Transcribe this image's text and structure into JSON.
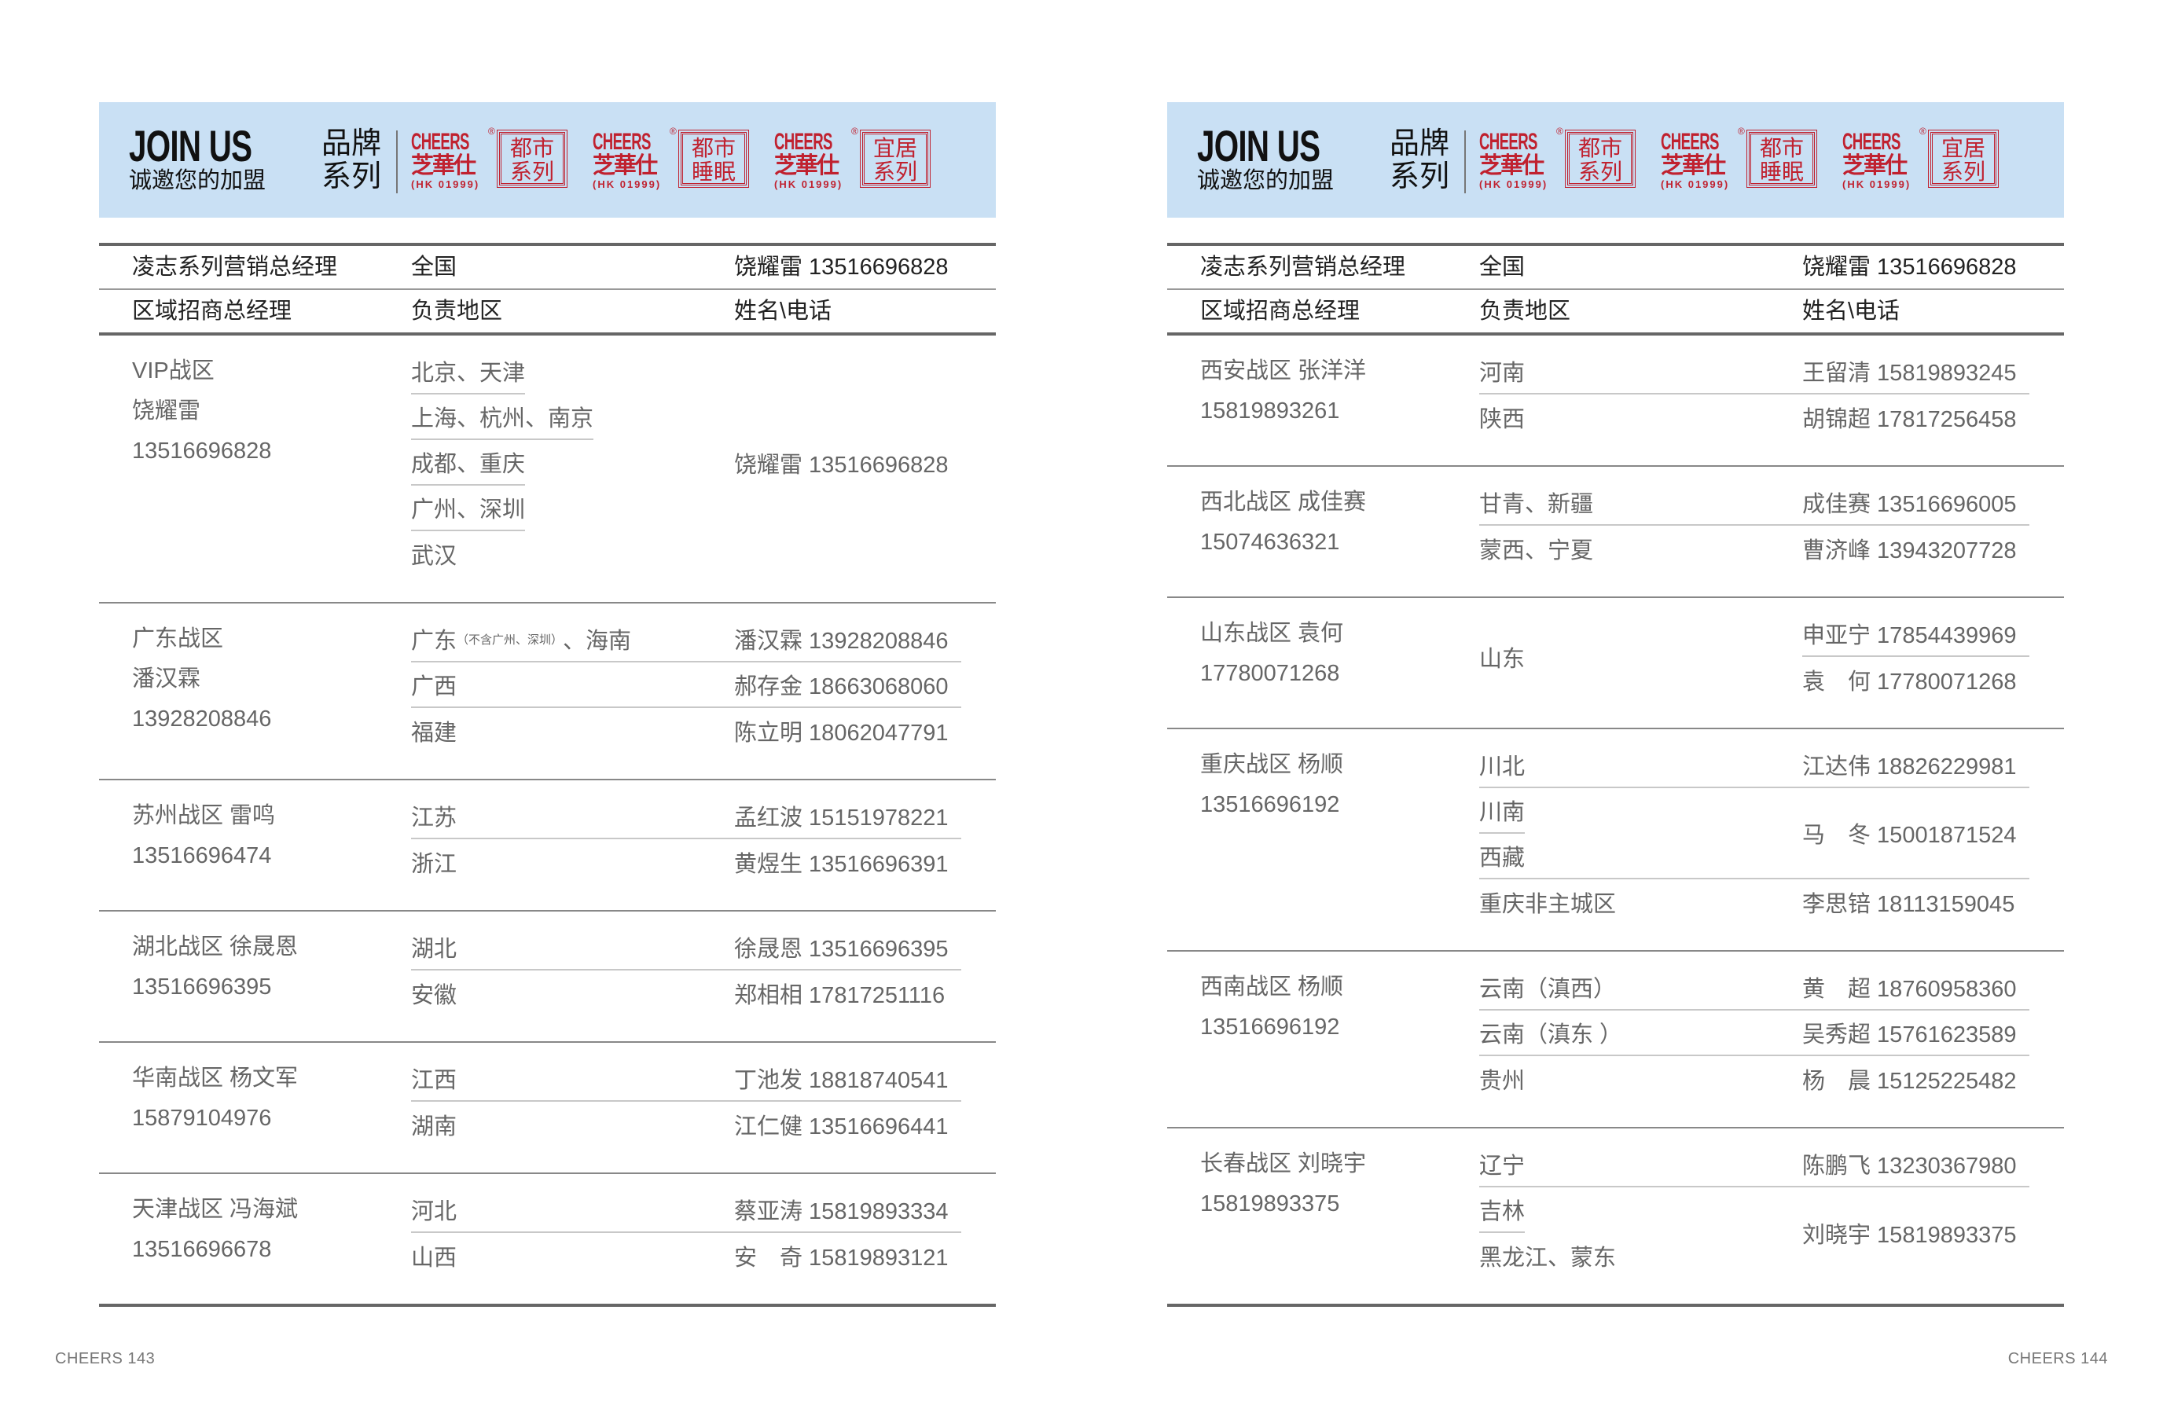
{
  "colors": {
    "band": "#c9e0f4",
    "brand_red": "#c0212f",
    "text": "#666666"
  },
  "header": {
    "join_title": "JOIN US",
    "join_subtitle": "诚邀您的加盟",
    "brand_label": "品牌系列",
    "logos": [
      {
        "en": "CHEERS",
        "reg": "®",
        "cn": "芝華仕",
        "code": "(HK 01999)",
        "series": [
          "都市",
          "系列"
        ]
      },
      {
        "en": "CHEERS",
        "reg": "®",
        "cn": "芝華仕",
        "code": "(HK 01999)",
        "series": [
          "都市",
          "睡眠"
        ]
      },
      {
        "en": "CHEERS",
        "reg": "®",
        "cn": "芝華仕",
        "code": "(HK 01999)",
        "series": [
          "宜居",
          "系列"
        ]
      }
    ]
  },
  "table_header": {
    "row1": [
      "凌志系列营销总经理",
      "全国",
      "饶耀雷 13516696828"
    ],
    "row2": [
      "区域招商总经理",
      "负责地区",
      "姓名\\电话"
    ]
  },
  "pages": [
    {
      "footer": "CHEERS  143",
      "sections": [
        {
          "manager": [
            "VIP战区",
            "饶耀雷",
            "13516696828"
          ],
          "regions": [
            {
              "text": "北京、天津"
            },
            {
              "text": "上海、杭州、南京"
            },
            {
              "text": "成都、重庆"
            },
            {
              "text": "广州、深圳"
            },
            {
              "text": "武汉"
            }
          ],
          "contacts": [
            {
              "text": "饶耀雷 13516696828",
              "span": 5
            }
          ]
        },
        {
          "manager": [
            "广东战区",
            "潘汉霖",
            "13928208846"
          ],
          "regions": [
            {
              "text": "广东",
              "note": "（不含广州、深圳）",
              "suffix": "、海南"
            },
            {
              "text": "广西"
            },
            {
              "text": "福建"
            }
          ],
          "contacts": [
            {
              "text": "潘汉霖 13928208846"
            },
            {
              "text": "郝存金 18663068060"
            },
            {
              "text": "陈立明 18062047791"
            }
          ]
        },
        {
          "manager": [
            "苏州战区 雷鸣",
            "13516696474"
          ],
          "regions": [
            {
              "text": "江苏"
            },
            {
              "text": "浙江"
            }
          ],
          "contacts": [
            {
              "text": "孟红波 15151978221"
            },
            {
              "text": "黄煜生 13516696391"
            }
          ]
        },
        {
          "manager": [
            "湖北战区 徐晟恩",
            "13516696395"
          ],
          "regions": [
            {
              "text": "湖北"
            },
            {
              "text": "安徽"
            }
          ],
          "contacts": [
            {
              "text": "徐晟恩 13516696395"
            },
            {
              "text": "郑相相 17817251116"
            }
          ]
        },
        {
          "manager": [
            "华南战区 杨文军",
            "15879104976"
          ],
          "regions": [
            {
              "text": "江西"
            },
            {
              "text": "湖南"
            }
          ],
          "contacts": [
            {
              "text": "丁池发 18818740541"
            },
            {
              "text": "江仁健 13516696441"
            }
          ]
        },
        {
          "manager": [
            "天津战区 冯海斌",
            "13516696678"
          ],
          "regions": [
            {
              "text": "河北"
            },
            {
              "text": "山西"
            }
          ],
          "contacts": [
            {
              "text": "蔡亚涛 15819893334"
            },
            {
              "text": "安　奇 15819893121"
            }
          ]
        }
      ]
    },
    {
      "footer": "CHEERS  144",
      "sections": [
        {
          "manager": [
            "西安战区 张洋洋",
            "15819893261"
          ],
          "regions": [
            {
              "text": "河南"
            },
            {
              "text": "陕西"
            }
          ],
          "contacts": [
            {
              "text": "王留清 15819893245"
            },
            {
              "text": "胡锦超 17817256458"
            }
          ]
        },
        {
          "manager": [
            "西北战区 成佳赛",
            "15074636321"
          ],
          "regions": [
            {
              "text": "甘青、新疆"
            },
            {
              "text": "蒙西、宁夏"
            }
          ],
          "contacts": [
            {
              "text": "成佳赛 13516696005"
            },
            {
              "text": "曹济峰 13943207728"
            }
          ]
        },
        {
          "manager": [
            "山东战区 袁何",
            "17780071268"
          ],
          "regions": [
            {
              "text": "山东",
              "span": 2
            }
          ],
          "contacts": [
            {
              "text": "申亚宁 17854439969"
            },
            {
              "text": "袁　何 17780071268"
            }
          ]
        },
        {
          "manager": [
            "重庆战区 杨顺",
            "13516696192"
          ],
          "regions": [
            {
              "text": "川北"
            },
            {
              "text": "川南"
            },
            {
              "text": "西藏"
            },
            {
              "text": "重庆非主城区"
            }
          ],
          "contacts": [
            {
              "text": "江达伟 18826229981"
            },
            {
              "text": "马　冬 15001871524",
              "span": 2
            },
            {
              "text": "李思锫 18113159045"
            }
          ]
        },
        {
          "manager": [
            "西南战区 杨顺",
            "13516696192"
          ],
          "regions": [
            {
              "text": "云南（滇西）"
            },
            {
              "text": "云南（滇东 ）"
            },
            {
              "text": "贵州"
            }
          ],
          "contacts": [
            {
              "text": "黄　超 18760958360"
            },
            {
              "text": "吴秀超 15761623589"
            },
            {
              "text": "杨　晨 15125225482"
            }
          ]
        },
        {
          "manager": [
            "长春战区 刘晓宇",
            "15819893375"
          ],
          "regions": [
            {
              "text": "辽宁"
            },
            {
              "text": "吉林"
            },
            {
              "text": "黑龙江、蒙东"
            }
          ],
          "contacts": [
            {
              "text": "陈鹏飞 13230367980"
            },
            {
              "text": "刘晓宇 15819893375",
              "span": 2
            }
          ]
        }
      ]
    }
  ]
}
